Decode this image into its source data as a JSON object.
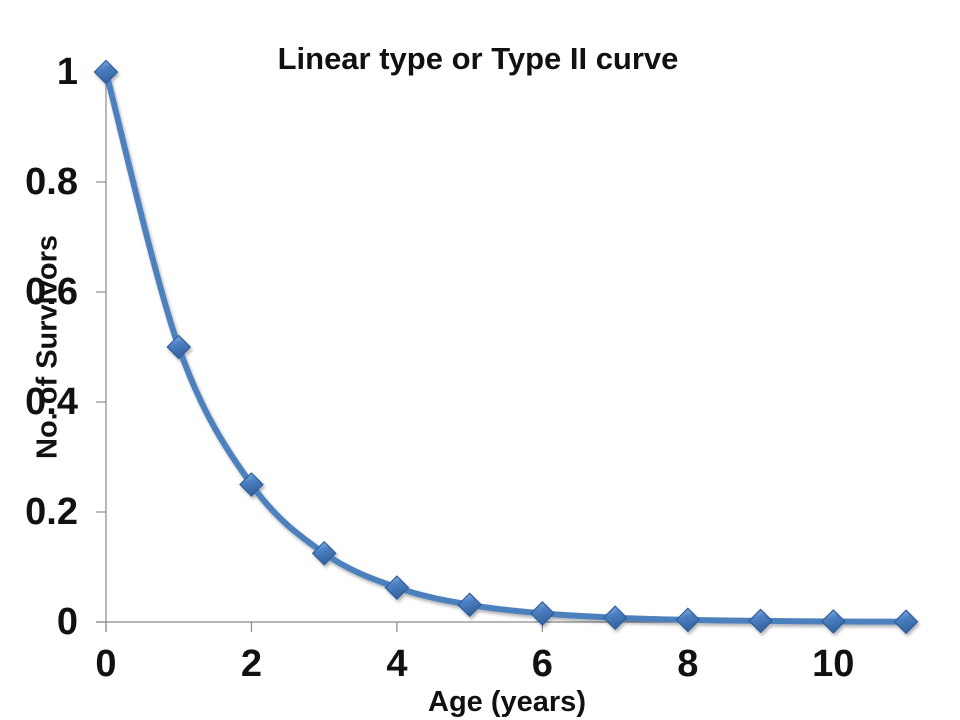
{
  "title": "Linear type or Type II curve",
  "y_axis": {
    "label": "No. of Survivors",
    "ticks": [
      {
        "label": "1",
        "value": 1.0
      },
      {
        "label": "0.8",
        "value": 0.8
      },
      {
        "label": "0.6",
        "value": 0.6
      },
      {
        "label": "0.4",
        "value": 0.4
      },
      {
        "label": "0.2",
        "value": 0.2
      },
      {
        "label": "0",
        "value": 0.0
      }
    ]
  },
  "x_axis": {
    "label": "Age (years)",
    "ticks": [
      {
        "label": "0",
        "value": 0
      },
      {
        "label": "2",
        "value": 2
      },
      {
        "label": "4",
        "value": 4
      },
      {
        "label": "6",
        "value": 6
      },
      {
        "label": "8",
        "value": 8
      },
      {
        "label": "10",
        "value": 10
      }
    ]
  },
  "colors": {
    "series_line": "#4E81BD",
    "marker_light": "#9DC1E9",
    "marker_mid": "#4B7FC1",
    "marker_dark": "#33649F",
    "marker_stroke": "#2D5C9D",
    "axis_line": "#8B8B8B",
    "text": "#111111",
    "background": "#FFFFFF"
  },
  "chart_data": {
    "type": "line",
    "title": "Linear type or Type II curve",
    "xlabel": "Age (years)",
    "ylabel": "No. of Survivors",
    "x": [
      0,
      1,
      2,
      3,
      4,
      5,
      6,
      7,
      8,
      9,
      10,
      11
    ],
    "series": [
      {
        "values": [
          1,
          0.5,
          0.25,
          0.125,
          0.0625,
          0.03125,
          0.015625,
          0.0078125,
          0.00390625,
          0.001953125,
          0.0009765625,
          0.00048828125
        ]
      }
    ],
    "xlim": [
      0,
      11
    ],
    "ylim": [
      0,
      1
    ],
    "x_tick_values": [
      0,
      2,
      4,
      6,
      8,
      10
    ],
    "y_tick_values": [
      0,
      0.2,
      0.4,
      0.6,
      0.8,
      1
    ],
    "grid": false,
    "legend": false,
    "marker": "diamond",
    "smooth": true
  }
}
